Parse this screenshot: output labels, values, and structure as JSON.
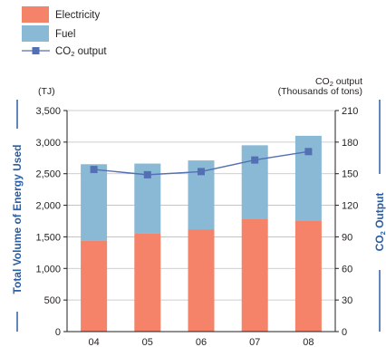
{
  "chart_data": {
    "type": "bar",
    "categories": [
      "04",
      "05",
      "06",
      "07",
      "08"
    ],
    "series": [
      {
        "name": "Electricity",
        "kind": "stacked-bar",
        "axis": "left",
        "color": "#f4836a",
        "values": [
          1440,
          1560,
          1620,
          1790,
          1750
        ]
      },
      {
        "name": "Fuel",
        "kind": "stacked-bar",
        "axis": "left",
        "color": "#89b9d5",
        "values": [
          1210,
          1100,
          1090,
          1160,
          1350
        ]
      },
      {
        "name_main": "CO",
        "name_sub": "2",
        "name_rest": " output",
        "kind": "line",
        "axis": "right",
        "color": "#5470b4",
        "values": [
          154,
          149,
          152,
          163,
          171
        ]
      }
    ],
    "y_left": {
      "unit": "(TJ)",
      "title": "Total Volume of Energy Used",
      "ylim": [
        0,
        3500
      ],
      "ticks": [
        "0",
        "500",
        "1,000",
        "1,500",
        "2,000",
        "2,500",
        "3,000",
        "3,500"
      ]
    },
    "y_right": {
      "unit_line1_main": "CO",
      "unit_line1_sub": "2",
      "unit_line1_rest": " output",
      "unit_line2": "(Thousands of tons)",
      "title_main": "CO",
      "title_sub": "2",
      "title_rest": " Output",
      "ylim": [
        0,
        210
      ],
      "ticks": [
        "0",
        "30",
        "60",
        "90",
        "120",
        "150",
        "180",
        "210"
      ]
    },
    "grid": true,
    "legend_position": "top-left"
  }
}
